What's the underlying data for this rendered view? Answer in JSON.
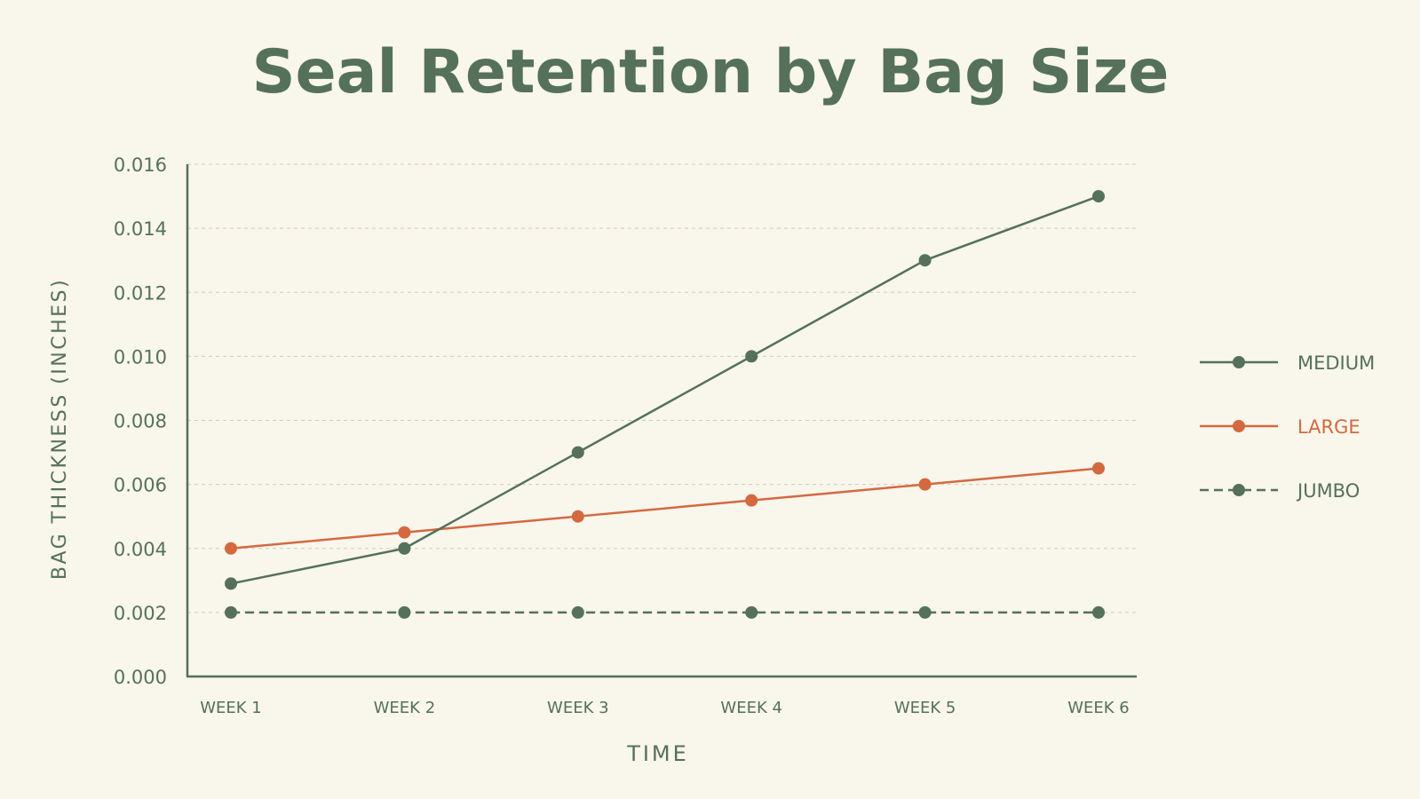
{
  "chart_data": {
    "type": "line",
    "title": "Seal Retention by Bag Size",
    "xlabel": "TIME",
    "ylabel": "BAG THICKNESS (INCHES)",
    "categories": [
      "WEEK 1",
      "WEEK 2",
      "WEEK 3",
      "WEEK 4",
      "WEEK 5",
      "WEEK 6"
    ],
    "ylim": [
      0,
      0.016
    ],
    "yticks": [
      "0.000",
      "0.002",
      "0.004",
      "0.006",
      "0.008",
      "0.010",
      "0.012",
      "0.014",
      "0.016"
    ],
    "grid": true,
    "legend_position": "right",
    "series": [
      {
        "name": "MEDIUM",
        "values": [
          0.0029,
          0.004,
          0.007,
          0.01,
          0.013,
          0.015
        ],
        "color": "#55715a",
        "style": "solid"
      },
      {
        "name": "LARGE",
        "values": [
          0.004,
          0.0045,
          0.005,
          0.0055,
          0.006,
          0.0065
        ],
        "color": "#d4693f",
        "style": "solid"
      },
      {
        "name": "JUMBO",
        "values": [
          0.002,
          0.002,
          0.002,
          0.002,
          0.002,
          0.002
        ],
        "color": "#55715a",
        "style": "dashed"
      }
    ]
  }
}
